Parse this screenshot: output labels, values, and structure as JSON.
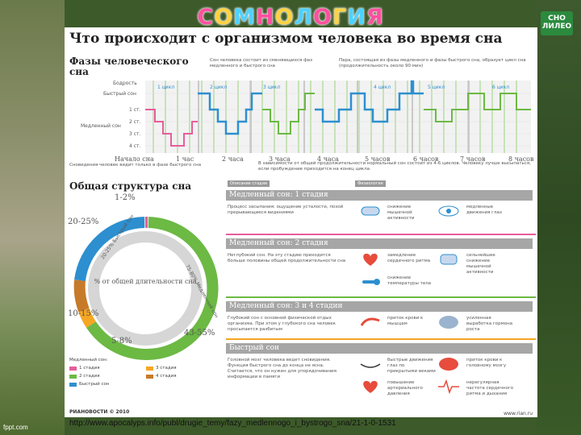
{
  "slide": {
    "title_letters": [
      "С",
      "О",
      "М",
      "Н",
      "О",
      "Л",
      "О",
      "Г",
      "И",
      "Я"
    ],
    "logo_line1": "СНО",
    "logo_line2": "ЛИЛЕО",
    "caption": "http://www.apocalyps.info/publ/drugie_temy/fazy_medlennogo_i_bystrogo_sna/21-1-0-1531",
    "watermark": "fppt.com"
  },
  "poster": {
    "title": "Что происходит с организмом человека во время сна",
    "phases_heading": "Фазы человеческого сна",
    "note1": "Сон человека состоит из сменяющихся фаз медленного и быстрого сна",
    "note2": "Пара, состоящая из фазы медленного и фазы быстрого сна, образует цикл сна (продолжительность около 90 мин)",
    "axis_labels": [
      "Бодрость",
      "Быстрый сон",
      "1 ст.",
      "2 ст.",
      "3 ст.",
      "4 ст."
    ],
    "slow_sleep_label": "Медленный сон",
    "cycle_labels": [
      "1 цикл",
      "2 цикл",
      "3 цикл",
      "4 цикл",
      "5 цикл",
      "6 цикл"
    ],
    "time_labels": [
      "Начало сна",
      "1 час",
      "2 часа",
      "3 часа",
      "4 часа",
      "5 часов",
      "6 часов",
      "7 часов",
      "8 часов"
    ],
    "bottom_note1": "Сновидения человек видит только в фазе быстрого сна",
    "bottom_note2": "В зависимости от общей продолжительности нормальный сон состоит из 4-6 циклов. Человеку лучше высыпаться, если пробуждение приходится на конец цикла",
    "structure_heading": "Общая структура сна",
    "donut_center": "% от общей длительности сна",
    "ring_labels": [
      "75-80% Медленный сон",
      "20-25% Быстрый сон"
    ],
    "percent_labels": [
      "1-2%",
      "20-25%",
      "10-15%",
      "5-8%",
      "43-55%"
    ],
    "legend_title": "Медленный сон:",
    "legend": [
      {
        "label": "1 стадия",
        "color": "#e75d9b"
      },
      {
        "label": "3 стадия",
        "color": "#f5a623"
      },
      {
        "label": "2 стадия",
        "color": "#6cb944"
      },
      {
        "label": "4 стадия",
        "color": "#c77a2a"
      },
      {
        "label": "Быстрый сон",
        "color": "#2d8fcf"
      }
    ],
    "brand": "РИАНОВОСТИ © 2010",
    "source": "www.rian.ru",
    "col_tags": [
      "Описание стадии",
      "Физиология"
    ],
    "stages": [
      {
        "name": "Медленный сон: 1 стадия",
        "desc": "Процесс засыпания: ощущение усталости, позой прерывающиеся видениями",
        "feats": [
          "снижение мышечной активности",
          "медленные движения глаз"
        ],
        "sep_color": "#e75d9b"
      },
      {
        "name": "Медленный сон: 2 стадия",
        "desc": "Неглубокий сон. На эту стадию приходится больше половины общей продолжительности сна",
        "feats": [
          "замедление сердечного ритма",
          "снижение температуры тела",
          "сильнейшее снижение мышечной активности"
        ],
        "sep_color": "#6cb944"
      },
      {
        "name": "Медленный сон: 3 и 4 стадии",
        "desc": "Глубокий сон с основной физической отдых организма. При этом у глубокого сна человек просыпается разбитым",
        "feats": [
          "приток крови к мышцам",
          "усиленная выработка гормона роста"
        ],
        "sep_color": "#f5a623"
      },
      {
        "name": "Быстрый сон",
        "desc": "Головной мозг человека ведет сновидения. Функция быстрого сна до конца не ясна. Считается, что он нужен для упорядочивания информации в памяти",
        "feats": [
          "быстрые движения глаз по прикрытыми веками",
          "приток крови к головному мозгу",
          "повышение артериального давления",
          "нерегулярная частота сердечного ритма и дыхания"
        ],
        "sep_color": "#2d8fcf"
      }
    ]
  }
}
